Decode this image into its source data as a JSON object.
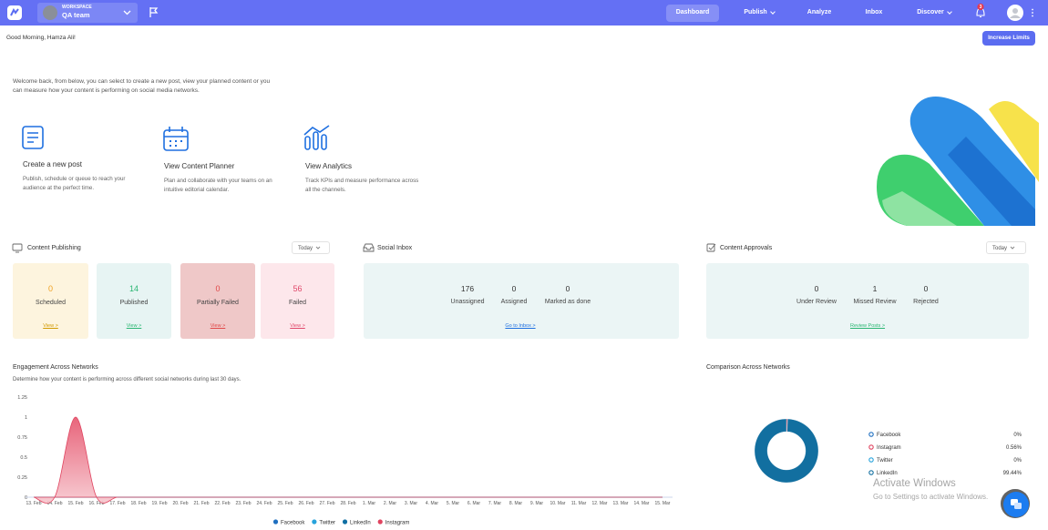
{
  "nav": {
    "workspace_label": "WORKSPACE",
    "workspace_name": "QA team",
    "items": [
      "Dashboard",
      "Publish",
      "Analyze",
      "Inbox",
      "Discover"
    ],
    "notification_count": 3
  },
  "greeting": "Good Morning, Hamza Ali!",
  "increase_limits": "Increase Limits",
  "welcome": "Welcome back, from below, you can select to create a new post, view your planned content or you can measure how your content is performing on social media networks.",
  "cards": [
    {
      "title": "Create a new post",
      "description": "Publish, schedule or queue to reach your audience at the perfect time."
    },
    {
      "title": "View Content Planner",
      "description": "Plan and collaborate with your teams on an intuitive editorial calendar."
    },
    {
      "title": "View Analytics",
      "description": "Track KPIs and measure performance across all the channels."
    }
  ],
  "content_publishing": {
    "title": "Content Publishing",
    "period": "Today",
    "stats": [
      {
        "value": 0,
        "label": "Scheduled",
        "link": "View >"
      },
      {
        "value": 14,
        "label": "Published",
        "link": "View >"
      },
      {
        "value": 0,
        "label": "Partially Failed",
        "link": "View >"
      },
      {
        "value": 56,
        "label": "Failed",
        "link": "View >"
      }
    ]
  },
  "social_inbox": {
    "title": "Social Inbox",
    "stats": [
      {
        "value": 176,
        "label": "Unassigned"
      },
      {
        "value": 0,
        "label": "Assigned"
      },
      {
        "value": 0,
        "label": "Marked as done"
      }
    ],
    "link": "Go to Inbox >"
  },
  "content_approvals": {
    "title": "Content Approvals",
    "period": "Today",
    "stats": [
      {
        "value": 0,
        "label": "Under Review"
      },
      {
        "value": 1,
        "label": "Missed Review"
      },
      {
        "value": 0,
        "label": "Rejected"
      }
    ],
    "link": "Review Posts >"
  },
  "engagement": {
    "title": "Engagement Across Networks",
    "subtitle": "Determine how your content is performing across different social networks during last 30 days.",
    "chart": {
      "type": "area",
      "x": [
        "13. Feb",
        "14. Feb",
        "15. Feb",
        "16. Feb",
        "17. Feb",
        "18. Feb",
        "19. Feb",
        "20. Feb",
        "21. Feb",
        "22. Feb",
        "23. Feb",
        "24. Feb",
        "25. Feb",
        "26. Feb",
        "27. Feb",
        "28. Feb",
        "1. Mar",
        "2. Mar",
        "3. Mar",
        "4. Mar",
        "5. Mar",
        "6. Mar",
        "7. Mar",
        "8. Mar",
        "9. Mar",
        "10. Mar",
        "11. Mar",
        "12. Mar",
        "13. Mar",
        "14. Mar",
        "15. Mar"
      ],
      "series": [
        {
          "name": "Facebook",
          "color": "#1f6fc0",
          "values": [
            0,
            0,
            0,
            0,
            0,
            0,
            0,
            0,
            0,
            0,
            0,
            0,
            0,
            0,
            0,
            0,
            0,
            0,
            0,
            0,
            0,
            0,
            0,
            0,
            0,
            0,
            0,
            0,
            0,
            0,
            0
          ]
        },
        {
          "name": "Twitter",
          "color": "#27a3dc",
          "values": [
            0,
            0,
            0,
            0,
            0,
            0,
            0,
            0,
            0,
            0,
            0,
            0,
            0,
            0,
            0,
            0,
            0,
            0,
            0,
            0,
            0,
            0,
            0,
            0,
            0,
            0,
            0,
            0,
            0,
            0,
            0
          ]
        },
        {
          "name": "LinkedIn",
          "color": "#0f6fa3",
          "values": [
            0,
            0,
            0,
            0,
            0,
            0,
            0,
            0,
            0,
            0,
            0,
            0,
            0,
            0,
            0,
            0,
            0,
            0,
            0,
            0,
            0,
            0,
            0,
            0,
            0,
            0,
            0,
            0,
            0,
            0,
            0
          ]
        },
        {
          "name": "Instagram",
          "color": "#e0435f",
          "values": [
            0,
            0,
            1,
            0,
            0,
            0,
            0,
            0,
            0,
            0,
            0,
            0,
            0,
            0,
            0,
            0,
            0,
            0,
            0,
            0,
            0,
            0,
            0,
            0,
            0,
            0,
            0,
            0,
            0,
            0,
            0
          ]
        }
      ],
      "ylim": [
        0,
        1.25
      ],
      "yticks": [
        0,
        0.25,
        0.5,
        0.75,
        1,
        1.25
      ]
    }
  },
  "comparison": {
    "title": "Comparison Across Networks",
    "chart": {
      "type": "pie",
      "donut": true,
      "categories": [
        "Facebook",
        "Instagram",
        "Twitter",
        "LinkedIn"
      ],
      "values": [
        0,
        0.56,
        0,
        99.44
      ],
      "value_labels": [
        "0%",
        "0.56%",
        "0%",
        "99.44%"
      ],
      "colors": [
        "#1f6fc0",
        "#e0435f",
        "#27a3dc",
        "#126fa0"
      ]
    }
  },
  "watermark": {
    "title": "Activate Windows",
    "text": "Go to Settings to activate Windows."
  }
}
